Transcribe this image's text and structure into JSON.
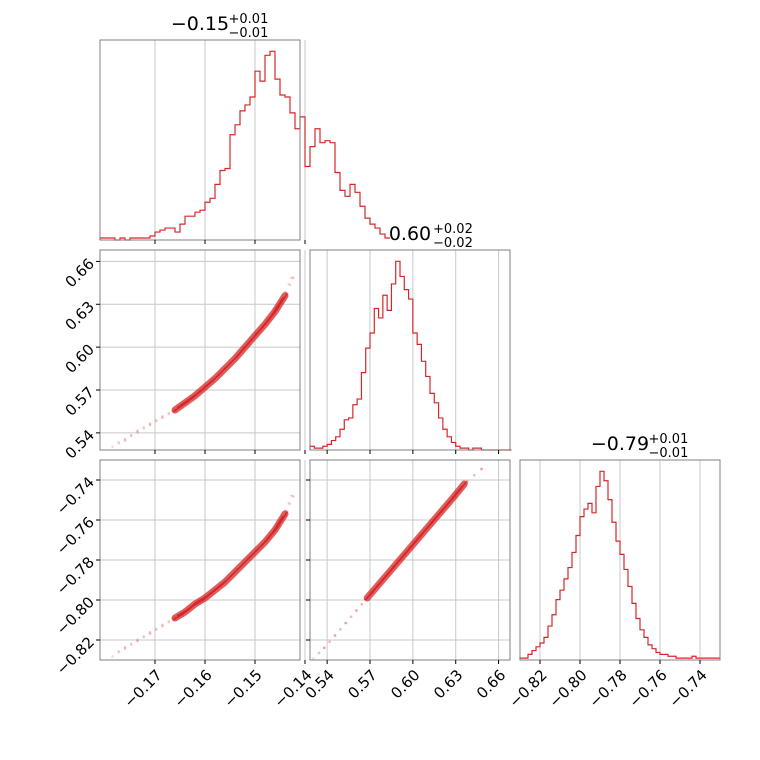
{
  "chart_data": {
    "type": "corner",
    "color": "#d62728",
    "panels": [
      {
        "kind": "hist",
        "param_index": 0,
        "title": {
          "main": "−0.15",
          "plus": "+0.01",
          "minus": "−0.01"
        },
        "x_range": [
          -0.181,
          -0.141
        ],
        "bins": {
          "start": -0.181,
          "width": 0.001,
          "counts": [
            1,
            1,
            1,
            0,
            1,
            0,
            1,
            1,
            1,
            1,
            2,
            4,
            5,
            6,
            6,
            4,
            8,
            12,
            12,
            14,
            15,
            19,
            21,
            28,
            35,
            36,
            53,
            58,
            65,
            68,
            72,
            85,
            80,
            93,
            95,
            81,
            73,
            72,
            64,
            56,
            62,
            37,
            47,
            56,
            49,
            50,
            49,
            34,
            25,
            22,
            28,
            24,
            17,
            11,
            8,
            6,
            3,
            1
          ]
        },
        "x_ticks": [],
        "y_ticks": []
      },
      {
        "kind": "hist",
        "param_index": 1,
        "title": {
          "main": "0.60",
          "plus": "+0.02",
          "minus": "−0.02"
        },
        "x_range": [
          0.528,
          0.668
        ],
        "bins": {
          "start": 0.528,
          "width": 0.003,
          "counts": [
            2,
            1,
            1,
            2,
            3,
            5,
            7,
            11,
            16,
            17,
            24,
            27,
            41,
            54,
            62,
            75,
            70,
            82,
            74,
            88,
            100,
            92,
            85,
            80,
            62,
            56,
            47,
            39,
            30,
            25,
            17,
            11,
            7,
            4,
            2,
            1,
            1,
            0,
            1,
            1,
            0,
            0,
            0,
            0,
            0,
            0,
            0
          ]
        },
        "x_ticks": [],
        "y_ticks": []
      },
      {
        "kind": "hist",
        "param_index": 2,
        "title": {
          "main": "−0.79",
          "plus": "+0.01",
          "minus": "−0.01"
        },
        "x_range": [
          -0.83,
          -0.73
        ],
        "bins": {
          "start": -0.83,
          "width": 0.002,
          "counts": [
            1,
            1,
            3,
            5,
            7,
            9,
            12,
            18,
            24,
            32,
            37,
            43,
            49,
            57,
            66,
            76,
            80,
            83,
            78,
            92,
            100,
            95,
            85,
            73,
            63,
            56,
            48,
            39,
            30,
            22,
            16,
            12,
            8,
            6,
            4,
            3,
            3,
            2,
            2,
            1,
            1,
            1,
            1,
            2,
            1,
            1,
            1,
            1,
            1,
            1
          ]
        },
        "x_ticks": [
          {
            "v": -0.82,
            "label": "−0.82"
          },
          {
            "v": -0.8,
            "label": "−0.80"
          },
          {
            "v": -0.78,
            "label": "−0.78"
          },
          {
            "v": -0.76,
            "label": "−0.76"
          },
          {
            "v": -0.74,
            "label": "−0.74"
          }
        ],
        "y_ticks": []
      },
      {
        "kind": "scatter",
        "x_index": 0,
        "y_index": 1,
        "x_range": [
          -0.181,
          -0.141
        ],
        "y_range": [
          0.528,
          0.668
        ],
        "points": [
          [
            -0.178,
            0.532
          ],
          [
            -0.176,
            0.535
          ],
          [
            -0.174,
            0.54
          ],
          [
            -0.172,
            0.544
          ],
          [
            -0.17,
            0.548
          ],
          [
            -0.168,
            0.552
          ],
          [
            -0.166,
            0.556
          ],
          [
            -0.164,
            0.561
          ],
          [
            -0.162,
            0.566
          ],
          [
            -0.16,
            0.572
          ],
          [
            -0.158,
            0.578
          ],
          [
            -0.156,
            0.585
          ],
          [
            -0.154,
            0.592
          ],
          [
            -0.152,
            0.6
          ],
          [
            -0.15,
            0.608
          ],
          [
            -0.148,
            0.616
          ],
          [
            -0.146,
            0.625
          ],
          [
            -0.144,
            0.636
          ],
          [
            -0.143,
            0.645
          ],
          [
            -0.142,
            0.652
          ]
        ],
        "x_ticks": [],
        "y_ticks": [
          {
            "v": 0.54,
            "label": "0.54"
          },
          {
            "v": 0.57,
            "label": "0.57"
          },
          {
            "v": 0.6,
            "label": "0.60"
          },
          {
            "v": 0.63,
            "label": "0.63"
          },
          {
            "v": 0.66,
            "label": "0.66"
          }
        ]
      },
      {
        "kind": "scatter",
        "x_index": 0,
        "y_index": 2,
        "x_range": [
          -0.181,
          -0.141
        ],
        "y_range": [
          -0.83,
          -0.73
        ],
        "points": [
          [
            -0.178,
            -0.827
          ],
          [
            -0.176,
            -0.824
          ],
          [
            -0.174,
            -0.821
          ],
          [
            -0.172,
            -0.818
          ],
          [
            -0.17,
            -0.815
          ],
          [
            -0.168,
            -0.812
          ],
          [
            -0.166,
            -0.809
          ],
          [
            -0.164,
            -0.806
          ],
          [
            -0.162,
            -0.802
          ],
          [
            -0.16,
            -0.799
          ],
          [
            -0.158,
            -0.795
          ],
          [
            -0.156,
            -0.791
          ],
          [
            -0.154,
            -0.786
          ],
          [
            -0.152,
            -0.781
          ],
          [
            -0.15,
            -0.776
          ],
          [
            -0.148,
            -0.771
          ],
          [
            -0.146,
            -0.765
          ],
          [
            -0.144,
            -0.757
          ],
          [
            -0.143,
            -0.751
          ],
          [
            -0.142,
            -0.745
          ]
        ],
        "x_ticks": [
          {
            "v": -0.17,
            "label": "−0.17"
          },
          {
            "v": -0.16,
            "label": "−0.16"
          },
          {
            "v": -0.15,
            "label": "−0.15"
          },
          {
            "v": -0.14,
            "label": "−0.14"
          }
        ],
        "y_ticks": [
          {
            "v": -0.82,
            "label": "−0.82"
          },
          {
            "v": -0.8,
            "label": "−0.80"
          },
          {
            "v": -0.78,
            "label": "−0.78"
          },
          {
            "v": -0.76,
            "label": "−0.76"
          },
          {
            "v": -0.74,
            "label": "−0.74"
          }
        ]
      },
      {
        "kind": "scatter",
        "x_index": 1,
        "y_index": 2,
        "x_range": [
          0.528,
          0.668
        ],
        "y_range": [
          -0.83,
          -0.73
        ],
        "points": [
          [
            0.532,
            -0.828
          ],
          [
            0.538,
            -0.824
          ],
          [
            0.544,
            -0.819
          ],
          [
            0.55,
            -0.814
          ],
          [
            0.556,
            -0.809
          ],
          [
            0.562,
            -0.804
          ],
          [
            0.568,
            -0.799
          ],
          [
            0.574,
            -0.794
          ],
          [
            0.58,
            -0.789
          ],
          [
            0.586,
            -0.784
          ],
          [
            0.592,
            -0.779
          ],
          [
            0.598,
            -0.774
          ],
          [
            0.604,
            -0.769
          ],
          [
            0.61,
            -0.764
          ],
          [
            0.616,
            -0.759
          ],
          [
            0.622,
            -0.754
          ],
          [
            0.628,
            -0.749
          ],
          [
            0.636,
            -0.742
          ],
          [
            0.644,
            -0.737
          ],
          [
            0.652,
            -0.732
          ]
        ],
        "x_ticks": [
          {
            "v": 0.54,
            "label": "0.54"
          },
          {
            "v": 0.57,
            "label": "0.57"
          },
          {
            "v": 0.6,
            "label": "0.60"
          },
          {
            "v": 0.63,
            "label": "0.63"
          },
          {
            "v": 0.66,
            "label": "0.66"
          }
        ],
        "y_ticks": []
      }
    ]
  }
}
